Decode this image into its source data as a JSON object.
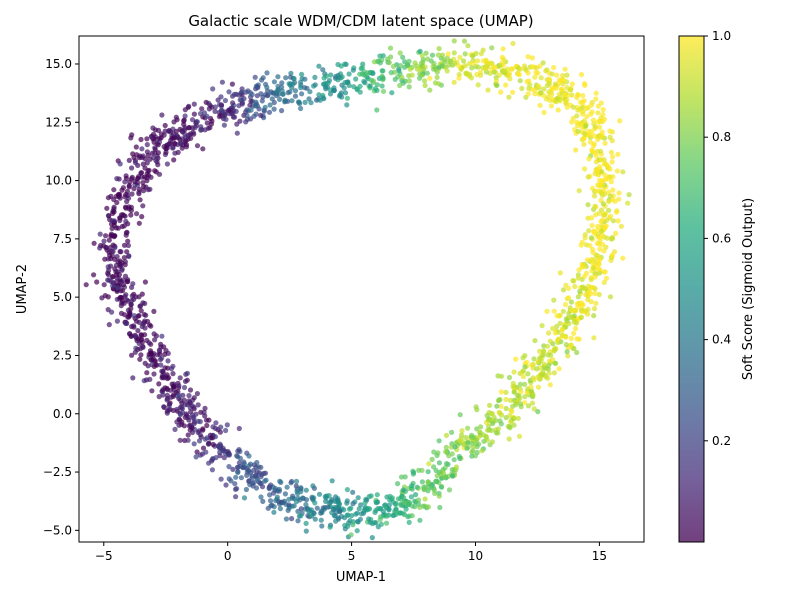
{
  "chart_data": {
    "type": "scatter",
    "title": "Galactic scale WDM/CDM latent space (UMAP)",
    "xlabel": "UMAP-1",
    "ylabel": "UMAP-2",
    "xlim": [
      -6.0,
      16.8
    ],
    "ylim": [
      -5.5,
      16.2
    ],
    "x_ticks": [
      -5,
      0,
      5,
      10,
      15
    ],
    "y_ticks": [
      -5.0,
      -2.5,
      0.0,
      2.5,
      5.0,
      7.5,
      10.0,
      12.5,
      15.0
    ],
    "colorbar": {
      "label": "Soft Score (Sigmoid Output)",
      "range": [
        0.0,
        1.0
      ],
      "ticks": [
        0.2,
        0.4,
        0.6,
        0.8,
        1.0
      ],
      "colormap": "viridis"
    },
    "point_alpha": 0.7,
    "grid": false,
    "outline": [
      {
        "x": -4.8,
        "y": 7.0,
        "score": 0.02
      },
      {
        "x": -4.2,
        "y": 9.3,
        "score": 0.02
      },
      {
        "x": -3.3,
        "y": 10.8,
        "score": 0.02
      },
      {
        "x": -2.2,
        "y": 11.8,
        "score": 0.03
      },
      {
        "x": -0.9,
        "y": 12.6,
        "score": 0.05
      },
      {
        "x": 0.5,
        "y": 13.3,
        "score": 0.15
      },
      {
        "x": 2.2,
        "y": 13.7,
        "score": 0.35
      },
      {
        "x": 4.2,
        "y": 14.2,
        "score": 0.5
      },
      {
        "x": 6.3,
        "y": 14.6,
        "score": 0.7
      },
      {
        "x": 8.2,
        "y": 14.9,
        "score": 0.82
      },
      {
        "x": 10.2,
        "y": 15.0,
        "score": 0.95
      },
      {
        "x": 11.8,
        "y": 14.6,
        "score": 0.98
      },
      {
        "x": 13.4,
        "y": 13.9,
        "score": 0.99
      },
      {
        "x": 14.5,
        "y": 12.8,
        "score": 1.0
      },
      {
        "x": 15.1,
        "y": 11.0,
        "score": 1.0
      },
      {
        "x": 15.2,
        "y": 9.0,
        "score": 1.0
      },
      {
        "x": 14.9,
        "y": 7.0,
        "score": 1.0
      },
      {
        "x": 14.4,
        "y": 5.0,
        "score": 0.97
      },
      {
        "x": 13.6,
        "y": 3.5,
        "score": 0.95
      },
      {
        "x": 12.6,
        "y": 2.0,
        "score": 0.93
      },
      {
        "x": 11.6,
        "y": 0.6,
        "score": 0.9
      },
      {
        "x": 10.3,
        "y": -0.8,
        "score": 0.85
      },
      {
        "x": 8.9,
        "y": -2.2,
        "score": 0.78
      },
      {
        "x": 7.6,
        "y": -3.5,
        "score": 0.72
      },
      {
        "x": 6.3,
        "y": -4.3,
        "score": 0.6
      },
      {
        "x": 4.8,
        "y": -4.1,
        "score": 0.5
      },
      {
        "x": 3.3,
        "y": -4.0,
        "score": 0.4
      },
      {
        "x": 1.6,
        "y": -3.3,
        "score": 0.3
      },
      {
        "x": 0.2,
        "y": -2.2,
        "score": 0.2
      },
      {
        "x": -1.0,
        "y": -0.8,
        "score": 0.08
      },
      {
        "x": -2.0,
        "y": 0.6,
        "score": 0.05
      },
      {
        "x": -2.9,
        "y": 2.0,
        "score": 0.04
      },
      {
        "x": -3.6,
        "y": 3.8,
        "score": 0.03
      },
      {
        "x": -4.4,
        "y": 5.3,
        "score": 0.02
      }
    ]
  }
}
